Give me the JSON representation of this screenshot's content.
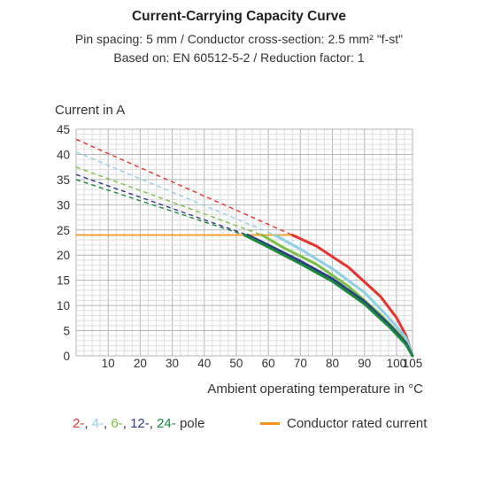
{
  "chart_data": {
    "type": "line",
    "title": "Current-Carrying Capacity Curve",
    "subtitle_lines": [
      "Pin spacing: 5 mm / Conductor cross-section: 2.5 mm² \"f-st\"",
      "Based on: EN 60512-5-2 / Reduction factor: 1"
    ],
    "ylabel": "Current in A",
    "xlabel": "Ambient operating temperature in °C",
    "xlim": [
      0,
      105
    ],
    "ylim": [
      0,
      45
    ],
    "x_ticks": [
      10,
      20,
      30,
      40,
      50,
      60,
      70,
      80,
      90,
      100,
      105
    ],
    "y_ticks": [
      0,
      5,
      10,
      15,
      20,
      25,
      30,
      35,
      40,
      45
    ],
    "grid": true,
    "legend_parts": [
      {
        "text": "2-",
        "color": "#e8322c"
      },
      {
        "text": ", ",
        "color": "#333333"
      },
      {
        "text": "4-",
        "color": "#8ecfe6"
      },
      {
        "text": ", ",
        "color": "#333333"
      },
      {
        "text": "6-",
        "color": "#7ac143"
      },
      {
        "text": ", ",
        "color": "#333333"
      },
      {
        "text": "12-",
        "color": "#2e3a87"
      },
      {
        "text": ", ",
        "color": "#333333"
      },
      {
        "text": "24-",
        "color": "#1a8a3e"
      },
      {
        "text": " pole",
        "color": "#333333"
      }
    ],
    "rated_current_label": "Conductor rated current",
    "rated_current": {
      "value": 24,
      "color": "#f7941d"
    },
    "series": [
      {
        "name": "2-",
        "color": "#e8322c",
        "solid": [
          [
            67.5,
            24
          ],
          [
            75,
            21.8
          ],
          [
            85,
            17.6
          ],
          [
            95,
            11.8
          ],
          [
            100,
            7.6
          ],
          [
            103,
            4.0
          ],
          [
            105,
            0
          ]
        ],
        "dashed": [
          [
            0,
            43
          ],
          [
            67.5,
            24
          ]
        ]
      },
      {
        "name": "4-",
        "color": "#8ecfe6",
        "solid": [
          [
            62,
            24
          ],
          [
            70,
            21.2
          ],
          [
            80,
            17.3
          ],
          [
            90,
            12.6
          ],
          [
            97,
            8.0
          ],
          [
            103,
            3.6
          ],
          [
            105,
            0
          ]
        ],
        "dashed": [
          [
            0,
            40.5
          ],
          [
            62,
            24
          ]
        ]
      },
      {
        "name": "6-",
        "color": "#7ac143",
        "solid": [
          [
            58,
            24
          ],
          [
            65,
            21.4
          ],
          [
            75,
            18.2
          ],
          [
            85,
            13.8
          ],
          [
            95,
            8.2
          ],
          [
            102,
            3.6
          ],
          [
            105,
            0
          ]
        ],
        "dashed": [
          [
            0,
            37.5
          ],
          [
            58,
            24
          ]
        ]
      },
      {
        "name": "12-",
        "color": "#2e3a87",
        "solid": [
          [
            53.5,
            24
          ],
          [
            60,
            22.0
          ],
          [
            70,
            18.8
          ],
          [
            80,
            15.3
          ],
          [
            90,
            10.8
          ],
          [
            98,
            6.0
          ],
          [
            103,
            2.5
          ],
          [
            105,
            0
          ]
        ],
        "dashed": [
          [
            0,
            36
          ],
          [
            53.5,
            24
          ]
        ]
      },
      {
        "name": "24-",
        "color": "#1a8a3e",
        "solid": [
          [
            52.5,
            24
          ],
          [
            60,
            21.6
          ],
          [
            70,
            18.3
          ],
          [
            80,
            14.8
          ],
          [
            90,
            10.3
          ],
          [
            98,
            5.6
          ],
          [
            103,
            2.2
          ],
          [
            105,
            0
          ]
        ],
        "dashed": [
          [
            0,
            35
          ],
          [
            52.5,
            24
          ]
        ]
      }
    ]
  }
}
